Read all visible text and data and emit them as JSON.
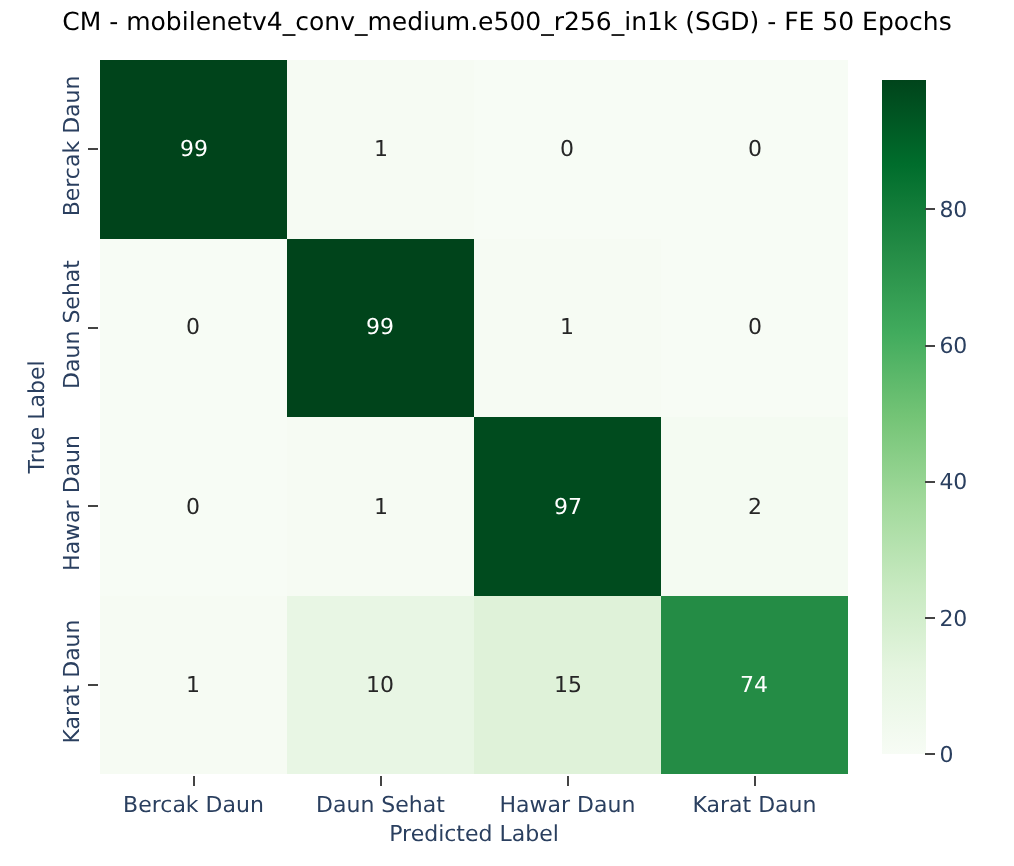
{
  "chart_data": {
    "type": "heatmap",
    "title": "CM - mobilenetv4_conv_medium.e500_r256_in1k (SGD) - FE 50 Epochs",
    "xlabel": "Predicted Label",
    "ylabel": "True Label",
    "categories": [
      "Bercak Daun",
      "Daun Sehat",
      "Hawar Daun",
      "Karat Daun"
    ],
    "y_categories": [
      "Bercak Daun",
      "Daun Sehat",
      "Hawar Daun",
      "Karat Daun"
    ],
    "cells": [
      [
        99,
        1,
        0,
        0
      ],
      [
        0,
        99,
        1,
        0
      ],
      [
        0,
        1,
        97,
        2
      ],
      [
        1,
        10,
        15,
        74
      ]
    ],
    "clim": [
      0,
      99
    ],
    "cticks": [
      0,
      20,
      40,
      60,
      80
    ],
    "data_labels": true
  }
}
